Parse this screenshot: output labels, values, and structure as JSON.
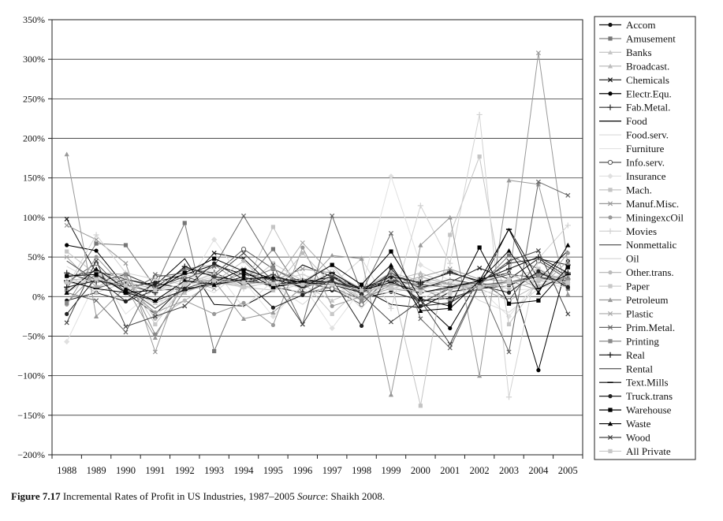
{
  "caption": {
    "figure_label": "Figure 7.17",
    "title": "Incremental Rates of Profit in US Industries, 1987–2005",
    "source_label": "Source",
    "source": ": Shaikh 2008."
  },
  "chart_data": {
    "type": "line",
    "title": "Incremental Rates of Profit in US Industries, 1987–2005",
    "xlabel": "",
    "ylabel": "",
    "x": [
      1988,
      1989,
      1990,
      1991,
      1992,
      1993,
      1994,
      1995,
      1996,
      1997,
      1998,
      1999,
      2000,
      2001,
      2002,
      2003,
      2004,
      2005
    ],
    "x_tick_labels": [
      "1988",
      "1989",
      "1990",
      "1991",
      "1992",
      "1993",
      "1994",
      "1995",
      "1996",
      "1997",
      "1998",
      "1999",
      "2000",
      "2001",
      "2002",
      "2003",
      "2004",
      "2005"
    ],
    "y_unit": "%",
    "ylim": [
      -200,
      350
    ],
    "y_ticks": [
      -200,
      -150,
      -100,
      -50,
      0,
      50,
      100,
      150,
      200,
      250,
      300,
      350
    ],
    "y_tick_labels": [
      "−200%",
      "−150%",
      "−100%",
      "−50%",
      "0%",
      "50%",
      "100%",
      "150%",
      "200%",
      "250%",
      "300%",
      "350%"
    ],
    "grid": "horizontal",
    "legend_position": "right",
    "series": [
      {
        "name": "Accom",
        "color": "#111111",
        "marker": "dot",
        "values": [
          -5,
          5,
          -6,
          8,
          10,
          15,
          25,
          12,
          5,
          8,
          -2,
          6,
          -5,
          -2,
          10,
          14,
          30,
          15
        ]
      },
      {
        "name": "Amusement",
        "color": "#777777",
        "marker": "square",
        "values": [
          10,
          67,
          65,
          12,
          93,
          -69,
          18,
          60,
          4,
          12,
          -4,
          30,
          -9,
          12,
          14,
          52,
          35,
          10
        ]
      },
      {
        "name": "Banks",
        "color": "#c6c6c6",
        "marker": "triangle",
        "values": [
          28,
          5,
          18,
          -22,
          15,
          30,
          12,
          8,
          15,
          -5,
          10,
          15,
          8,
          22,
          12,
          18,
          20,
          28
        ]
      },
      {
        "name": "Broadcast.",
        "color": "#bbbbbb",
        "marker": "triangle",
        "values": [
          20,
          25,
          8,
          -8,
          5,
          20,
          12,
          18,
          2,
          25,
          -4,
          20,
          30,
          15,
          10,
          -5,
          15,
          20
        ]
      },
      {
        "name": "Chemicals",
        "color": "#1a1a1a",
        "marker": "x",
        "values": [
          98,
          30,
          5,
          -22,
          15,
          55,
          48,
          12,
          20,
          18,
          8,
          22,
          12,
          18,
          36,
          22,
          48,
          25
        ]
      },
      {
        "name": "Electr.Equ.",
        "color": "#000000",
        "marker": "dot",
        "values": [
          65,
          58,
          12,
          18,
          28,
          40,
          28,
          22,
          18,
          25,
          5,
          22,
          -5,
          -40,
          22,
          30,
          -93,
          45
        ]
      },
      {
        "name": "Fab.Metal.",
        "color": "#2a2a2a",
        "marker": "plus",
        "values": [
          30,
          18,
          28,
          12,
          35,
          30,
          15,
          28,
          10,
          26,
          8,
          28,
          16,
          32,
          18,
          42,
          48,
          40
        ]
      },
      {
        "name": "Food",
        "color": "#000000",
        "marker": "none",
        "values": [
          25,
          32,
          22,
          14,
          48,
          -10,
          -12,
          8,
          40,
          25,
          10,
          -10,
          -14,
          6,
          12,
          86,
          22,
          58
        ]
      },
      {
        "name": "Food.serv.",
        "color": "#dddddd",
        "marker": "none",
        "values": [
          38,
          18,
          22,
          -15,
          22,
          35,
          -14,
          20,
          10,
          35,
          5,
          5,
          12,
          35,
          12,
          14,
          16,
          12
        ]
      },
      {
        "name": "Furniture",
        "color": "#e2e2e2",
        "marker": "none",
        "values": [
          8,
          35,
          -22,
          10,
          5,
          25,
          10,
          20,
          28,
          10,
          -5,
          25,
          10,
          15,
          5,
          8,
          10,
          20
        ]
      },
      {
        "name": "Info.serv.",
        "color": "#555555",
        "marker": "circle",
        "values": [
          18,
          42,
          5,
          25,
          30,
          28,
          60,
          35,
          18,
          10,
          -10,
          28,
          -8,
          10,
          20,
          -5,
          45,
          22
        ]
      },
      {
        "name": "Insurance",
        "color": "#e0e0e0",
        "marker": "diamond",
        "values": [
          -57,
          20,
          15,
          -25,
          10,
          72,
          20,
          -25,
          15,
          -40,
          10,
          152,
          40,
          20,
          10,
          -25,
          20,
          30
        ]
      },
      {
        "name": "Mach.",
        "color": "#c4c4c4",
        "marker": "square",
        "values": [
          57,
          28,
          18,
          5,
          28,
          18,
          12,
          88,
          20,
          40,
          -5,
          20,
          -138,
          78,
          177,
          -35,
          20,
          28
        ]
      },
      {
        "name": "Manuf.Misc.",
        "color": "#999999",
        "marker": "x",
        "values": [
          90,
          72,
          42,
          -70,
          35,
          40,
          15,
          20,
          35,
          30,
          10,
          15,
          25,
          35,
          22,
          20,
          308,
          40
        ]
      },
      {
        "name": "MiningexcOil",
        "color": "#999999",
        "marker": "dot",
        "values": [
          -10,
          50,
          10,
          -20,
          -5,
          -22,
          -8,
          -36,
          62,
          -12,
          0,
          10,
          5,
          10,
          12,
          20,
          8,
          55
        ]
      },
      {
        "name": "Movies",
        "color": "#d2d2d2",
        "marker": "plus",
        "values": [
          12,
          78,
          30,
          22,
          15,
          28,
          10,
          20,
          28,
          15,
          48,
          -15,
          115,
          42,
          230,
          -127,
          48,
          90
        ]
      },
      {
        "name": "Nonmettalic",
        "color": "#444444",
        "marker": "none",
        "values": [
          20,
          10,
          22,
          12,
          25,
          15,
          30,
          20,
          22,
          18,
          12,
          20,
          15,
          12,
          18,
          28,
          24,
          18
        ]
      },
      {
        "name": "Oil",
        "color": "#d8d8d8",
        "marker": "none",
        "values": [
          10,
          25,
          15,
          -10,
          20,
          5,
          35,
          15,
          -10,
          22,
          -15,
          30,
          -5,
          20,
          -5,
          -20,
          10,
          30
        ]
      },
      {
        "name": "Other.trans.",
        "color": "#bbbbbb",
        "marker": "dot",
        "values": [
          18,
          12,
          28,
          -28,
          -5,
          18,
          45,
          8,
          55,
          15,
          10,
          30,
          20,
          10,
          18,
          10,
          20,
          15
        ]
      },
      {
        "name": "Paper",
        "color": "#c8c8c8",
        "marker": "square",
        "values": [
          5,
          28,
          25,
          -35,
          15,
          25,
          12,
          42,
          20,
          -22,
          12,
          10,
          20,
          15,
          12,
          22,
          35,
          18
        ]
      },
      {
        "name": "Petroleum",
        "color": "#999999",
        "marker": "triangle",
        "values": [
          180,
          -25,
          12,
          -52,
          20,
          20,
          -28,
          -20,
          12,
          52,
          48,
          -124,
          65,
          100,
          -100,
          147,
          142,
          3
        ]
      },
      {
        "name": "Plastic",
        "color": "#aaaaaa",
        "marker": "x",
        "values": [
          50,
          12,
          18,
          10,
          22,
          10,
          35,
          15,
          68,
          28,
          5,
          15,
          25,
          15,
          18,
          30,
          10,
          45
        ]
      },
      {
        "name": "Prim.Metal.",
        "color": "#666666",
        "marker": "x",
        "values": [
          5,
          -5,
          -45,
          28,
          22,
          38,
          102,
          40,
          -35,
          102,
          5,
          80,
          -28,
          -65,
          15,
          -70,
          145,
          128
        ]
      },
      {
        "name": "Printing",
        "color": "#8a8a8a",
        "marker": "square",
        "values": [
          -8,
          30,
          28,
          -48,
          8,
          15,
          20,
          35,
          15,
          20,
          -5,
          15,
          10,
          -5,
          10,
          18,
          28,
          22
        ]
      },
      {
        "name": "Real",
        "color": "#111111",
        "marker": "plus",
        "values": [
          12,
          20,
          15,
          5,
          38,
          25,
          20,
          15,
          20,
          18,
          10,
          25,
          18,
          30,
          20,
          35,
          50,
          30
        ]
      },
      {
        "name": "Rental",
        "color": "#555555",
        "marker": "none",
        "values": [
          45,
          20,
          12,
          -15,
          10,
          22,
          18,
          28,
          12,
          20,
          5,
          30,
          10,
          22,
          15,
          18,
          25,
          20
        ]
      },
      {
        "name": "Text.Mills",
        "color": "#000000",
        "marker": "dash",
        "values": [
          20,
          10,
          5,
          -5,
          8,
          18,
          35,
          22,
          12,
          30,
          8,
          18,
          5,
          12,
          20,
          85,
          10,
          28
        ]
      },
      {
        "name": "Truck.trans",
        "color": "#222222",
        "marker": "dot",
        "values": [
          -22,
          24,
          -6,
          17,
          10,
          42,
          22,
          -14,
          2,
          22,
          -37,
          36,
          -12,
          -8,
          14,
          5,
          32,
          12
        ]
      },
      {
        "name": "Warehouse",
        "color": "#000000",
        "marker": "square",
        "values": [
          26,
          28,
          5,
          8,
          30,
          48,
          32,
          12,
          18,
          40,
          15,
          57,
          -3,
          -12,
          62,
          -9,
          -5,
          37
        ]
      },
      {
        "name": "Waste",
        "color": "#000000",
        "marker": "triangle",
        "values": [
          5,
          35,
          10,
          -5,
          20,
          15,
          22,
          25,
          18,
          15,
          5,
          40,
          -18,
          -15,
          20,
          58,
          5,
          65
        ]
      },
      {
        "name": "Wood",
        "color": "#444444",
        "marker": "x",
        "values": [
          -33,
          45,
          -38,
          -25,
          -12,
          25,
          55,
          20,
          -35,
          25,
          3,
          -32,
          -5,
          -60,
          16,
          45,
          58,
          -22
        ]
      },
      {
        "name": "All Private",
        "color": "#c8c8c8",
        "marker": "square",
        "values": [
          18,
          22,
          14,
          8,
          16,
          20,
          18,
          16,
          15,
          15,
          8,
          12,
          6,
          4,
          12,
          18,
          22,
          18
        ]
      }
    ]
  }
}
